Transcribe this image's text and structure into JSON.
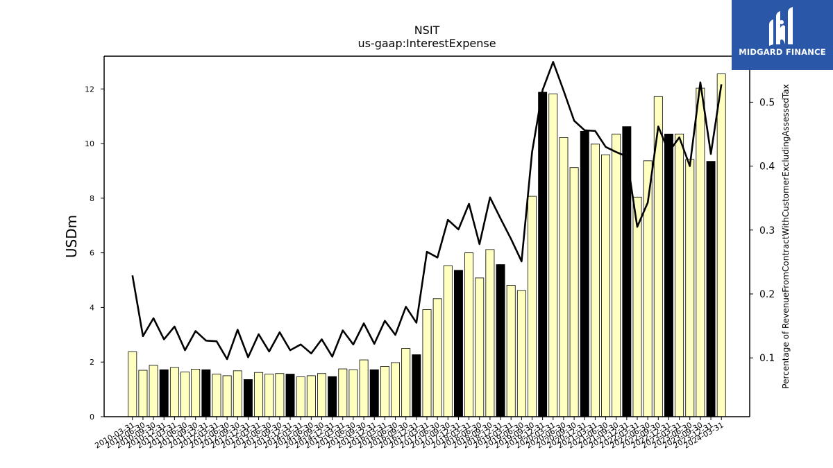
{
  "chart_data": {
    "type": "bar",
    "title": "NSIT",
    "subtitle": "us-gaap:InterestExpense",
    "ylabel": "USDm",
    "y2label": "Percentage of RevenueFromContractWithCustomerExcludingAssessedTax",
    "ylim": [
      0,
      13.2
    ],
    "y2lim": [
      0.008,
      0.572
    ],
    "yticks": [
      0,
      2,
      4,
      6,
      8,
      10,
      12
    ],
    "y2ticks": [
      0.1,
      0.2,
      0.3,
      0.4,
      0.5
    ],
    "categories": [
      "2010-03-31",
      "2010-06-30",
      "2010-09-30",
      "2010-12-31",
      "2011-03-31",
      "2011-06-30",
      "2011-09-30",
      "2011-12-31",
      "2012-03-31",
      "2012-06-30",
      "2012-09-30",
      "2012-12-31",
      "2013-03-31",
      "2013-06-30",
      "2013-09-30",
      "2013-12-31",
      "2014-03-31",
      "2014-06-30",
      "2014-09-30",
      "2014-12-31",
      "2015-03-31",
      "2015-06-30",
      "2015-09-30",
      "2015-12-31",
      "2016-03-31",
      "2016-06-30",
      "2016-09-30",
      "2016-12-31",
      "2017-03-31",
      "2017-06-30",
      "2017-09-30",
      "2017-12-31",
      "2018-03-31",
      "2018-06-30",
      "2018-09-30",
      "2018-12-31",
      "2019-03-31",
      "2019-06-30",
      "2019-09-30",
      "2019-12-31",
      "2020-03-31",
      "2020-06-30",
      "2020-09-30",
      "2020-12-31",
      "2021-03-31",
      "2021-06-30",
      "2021-09-30",
      "2021-12-31",
      "2022-03-31",
      "2022-06-30",
      "2022-09-30",
      "2022-12-31",
      "2023-03-31",
      "2023-06-30",
      "2023-09-30",
      "2023-12-31",
      "2024-03-31"
    ],
    "series": [
      {
        "type": "bar",
        "axis": "left",
        "values": [
          2.38,
          1.7,
          1.88,
          1.72,
          1.8,
          1.64,
          1.74,
          1.72,
          1.56,
          1.5,
          1.68,
          1.36,
          1.62,
          1.56,
          1.58,
          1.56,
          1.46,
          1.5,
          1.58,
          1.47,
          1.75,
          1.72,
          2.08,
          1.72,
          1.84,
          1.98,
          2.5,
          2.27,
          3.92,
          4.32,
          5.53,
          5.36,
          6.0,
          5.08,
          6.12,
          5.57,
          4.81,
          4.62,
          8.07,
          11.88,
          11.82,
          10.22,
          9.12,
          10.45,
          9.98,
          9.59,
          10.35,
          10.62,
          8.04,
          9.37,
          11.72,
          10.35,
          10.35,
          9.42,
          12.03,
          9.35,
          12.55
        ],
        "highlight": [
          false,
          false,
          false,
          true,
          false,
          false,
          false,
          true,
          false,
          false,
          false,
          true,
          false,
          false,
          false,
          true,
          false,
          false,
          false,
          true,
          false,
          false,
          false,
          true,
          false,
          false,
          false,
          true,
          false,
          false,
          false,
          true,
          false,
          false,
          false,
          true,
          false,
          false,
          false,
          true,
          false,
          false,
          false,
          true,
          false,
          false,
          false,
          true,
          false,
          false,
          false,
          true,
          false,
          false,
          false,
          true,
          false
        ],
        "color": "#ffffc0",
        "highlight_color": "#000000"
      },
      {
        "type": "line",
        "axis": "right",
        "values": [
          0.229,
          0.134,
          0.162,
          0.129,
          0.149,
          0.112,
          0.142,
          0.127,
          0.126,
          0.098,
          0.144,
          0.101,
          0.137,
          0.11,
          0.14,
          0.112,
          0.121,
          0.107,
          0.129,
          0.102,
          0.143,
          0.121,
          0.154,
          0.122,
          0.158,
          0.136,
          0.18,
          0.155,
          0.266,
          0.257,
          0.316,
          0.301,
          0.341,
          0.278,
          0.351,
          0.318,
          0.286,
          0.251,
          0.422,
          0.519,
          0.563,
          0.518,
          0.471,
          0.456,
          0.455,
          0.43,
          0.422,
          0.415,
          0.305,
          0.343,
          0.462,
          0.422,
          0.445,
          0.4,
          0.531,
          0.419,
          0.528
        ],
        "color": "#000000"
      }
    ]
  },
  "brand": {
    "name": "MIDGARD FINANCE",
    "background": "#2b57a8",
    "icon": "midgard-logo-icon"
  }
}
